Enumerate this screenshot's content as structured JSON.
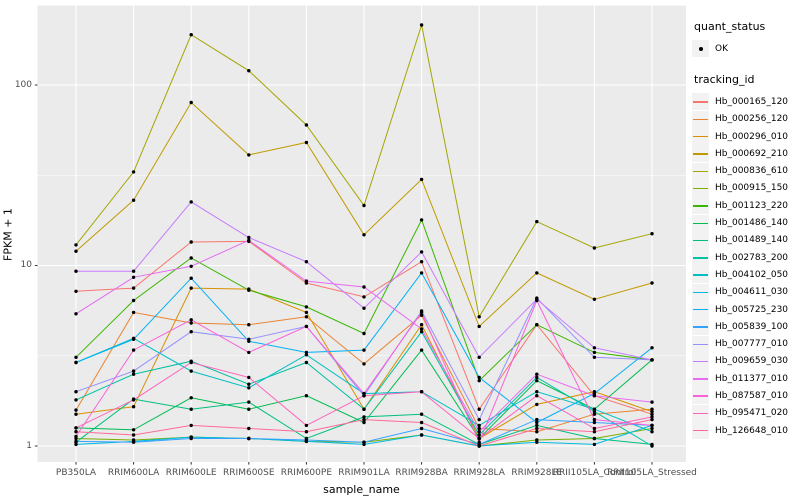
{
  "chart_data": {
    "type": "line",
    "title": "",
    "xlabel": "sample_name",
    "ylabel": "FPKM + 1",
    "legend_position": "right",
    "x_axis": {
      "label": "sample_name",
      "categories": [
        "PB350LA",
        "RRIM600LA",
        "RRIM600LE",
        "RRIM600SE",
        "RRIM600PE",
        "RRIM901LA",
        "RRIM928BA",
        "RRIM928LA",
        "RRIM928LE",
        "RRII105LA_Control",
        "RRII105LA_Stressed"
      ]
    },
    "y_axis": {
      "label": "FPKM + 1",
      "scale": "log10",
      "tick_values": [
        1,
        10,
        100
      ],
      "tick_labels": [
        "1",
        "10",
        "100"
      ],
      "minor_tick_values": [
        3.1623,
        31.623
      ],
      "range": [
        0.82,
        270
      ]
    },
    "grid": {
      "background": "#EBEBEB",
      "gridline_color": "#FFFFFF",
      "major": true,
      "minor_horizontal": true
    },
    "point_marker": {
      "shape": "filled-circle",
      "color": "#000000",
      "meaning": "quant_status OK"
    },
    "series": [
      {
        "name": "Hb_000165_120",
        "color": "#F8766D",
        "values": [
          7.2,
          7.5,
          13.5,
          13.6,
          8.0,
          6.7,
          10.5,
          1.6,
          4.7,
          1.9,
          1.5
        ]
      },
      {
        "name": "Hb_000256_120",
        "color": "#EA8331",
        "values": [
          1.58,
          5.5,
          4.8,
          4.7,
          5.2,
          2.85,
          5.3,
          1.25,
          1.2,
          1.5,
          1.6
        ]
      },
      {
        "name": "Hb_000296_010",
        "color": "#D89000",
        "values": [
          1.5,
          1.65,
          7.5,
          7.4,
          5.5,
          1.6,
          4.7,
          1.1,
          1.7,
          2.0,
          1.55
        ]
      },
      {
        "name": "Hb_000692_210",
        "color": "#C09B00",
        "values": [
          12,
          23,
          80,
          41,
          48,
          14.8,
          30,
          4.6,
          9.1,
          6.5,
          8.0
        ]
      },
      {
        "name": "Hb_000836_610",
        "color": "#A3A500",
        "values": [
          13,
          33,
          190,
          120,
          60,
          21.5,
          215,
          5.2,
          17.5,
          12.5,
          15
        ]
      },
      {
        "name": "Hb_000915_150",
        "color": "#7CAE00",
        "values": [
          1.1,
          1.08,
          1.12,
          1.1,
          1.06,
          1.05,
          1.15,
          1.0,
          1.08,
          1.1,
          1.25
        ]
      },
      {
        "name": "Hb_001123_220",
        "color": "#39B600",
        "values": [
          3.1,
          6.4,
          11.0,
          7.3,
          5.9,
          4.2,
          17.9,
          2.3,
          4.7,
          3.3,
          3.0
        ]
      },
      {
        "name": "Hb_001486_140",
        "color": "#00BB4E",
        "values": [
          1.26,
          1.23,
          1.85,
          1.6,
          1.9,
          1.35,
          3.4,
          1.1,
          2.3,
          1.6,
          3.0
        ]
      },
      {
        "name": "Hb_001489_140",
        "color": "#00BF7D",
        "values": [
          1.05,
          1.82,
          1.6,
          1.75,
          1.1,
          1.45,
          1.5,
          1.02,
          1.3,
          1.1,
          1.02
        ]
      },
      {
        "name": "Hb_002783_200",
        "color": "#00C1A3",
        "values": [
          1.8,
          2.5,
          2.95,
          2.2,
          2.9,
          1.6,
          4.3,
          1.15,
          2.4,
          1.55,
          1.0
        ]
      },
      {
        "name": "Hb_004102_050",
        "color": "#00BFC4",
        "values": [
          2.9,
          3.95,
          2.6,
          2.1,
          3.2,
          1.95,
          2.0,
          1.3,
          2.0,
          1.6,
          1.2
        ]
      },
      {
        "name": "Hb_004611_030",
        "color": "#00BAE0",
        "values": [
          1.02,
          1.06,
          1.12,
          1.1,
          1.06,
          1.02,
          1.15,
          1.0,
          1.05,
          1.02,
          1.3
        ]
      },
      {
        "name": "Hb_005725_230",
        "color": "#00B0F6",
        "values": [
          2.9,
          3.9,
          8.5,
          3.8,
          3.3,
          3.4,
          9.1,
          2.4,
          1.35,
          1.95,
          3.5
        ]
      },
      {
        "name": "Hb_005839_100",
        "color": "#35A2FF",
        "values": [
          1.06,
          1.05,
          1.1,
          1.1,
          1.08,
          1.05,
          1.25,
          1.02,
          1.4,
          1.35,
          1.3
        ]
      },
      {
        "name": "Hb_007777_010",
        "color": "#9590FF",
        "values": [
          2.0,
          2.6,
          4.3,
          3.9,
          4.6,
          1.9,
          5.6,
          1.4,
          6.6,
          3.1,
          3.0
        ]
      },
      {
        "name": "Hb_009659_030",
        "color": "#C77CFF",
        "values": [
          9.3,
          9.3,
          22.5,
          14.3,
          10.5,
          5.8,
          11.9,
          3.1,
          6.5,
          3.5,
          3.0
        ]
      },
      {
        "name": "Hb_011377_010",
        "color": "#E76BF3",
        "values": [
          5.4,
          8.6,
          9.9,
          13.8,
          8.2,
          7.6,
          4.45,
          1.2,
          2.5,
          1.9,
          1.75
        ]
      },
      {
        "name": "Hb_087587_010",
        "color": "#FA62DB",
        "values": [
          1.13,
          3.4,
          5.0,
          3.3,
          4.6,
          1.95,
          5.5,
          1.05,
          6.4,
          1.4,
          1.3
        ]
      },
      {
        "name": "Hb_095471_020",
        "color": "#FF62BC",
        "values": [
          1.26,
          1.8,
          2.9,
          2.4,
          1.3,
          1.9,
          2.0,
          1.1,
          1.9,
          1.25,
          1.45
        ]
      },
      {
        "name": "Hb_126648_010",
        "color": "#FF6A98",
        "values": [
          1.2,
          1.15,
          1.3,
          1.25,
          1.2,
          1.4,
          1.35,
          1.0,
          1.25,
          1.2,
          1.4
        ]
      }
    ]
  },
  "legend": {
    "quant_status_title": "quant_status",
    "quant_status_items": [
      {
        "label": "OK"
      }
    ],
    "tracking_id_title": "tracking_id"
  },
  "colors": {
    "panel_bg": "#EBEBEB",
    "gridline": "#FFFFFF",
    "tick_text": "#4D4D4D",
    "axis_title": "#000000",
    "legend_key_bg": "#F2F2F2",
    "point": "#000000"
  }
}
